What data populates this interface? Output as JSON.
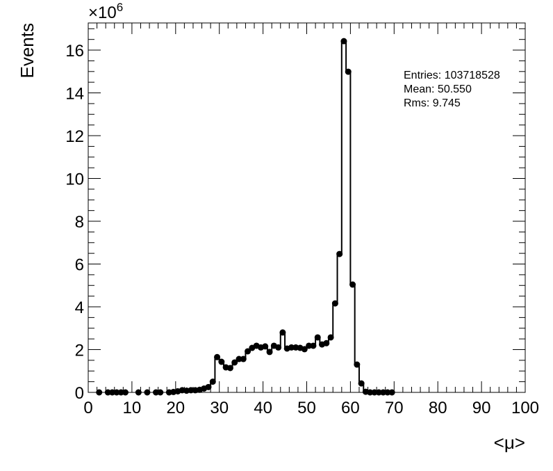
{
  "chart_data": {
    "type": "histogram",
    "y_label": "Events",
    "x_label": "<μ>",
    "y_multiplier_base": "×10",
    "y_multiplier_exponent": "6",
    "stats": [
      "Entries: 103718528",
      "Mean: 50.550",
      "Rms: 9.745"
    ],
    "color": "#000000",
    "bins": [
      0,
      1,
      2,
      3,
      4,
      5,
      6,
      7,
      8,
      9,
      10,
      11,
      12,
      13,
      14,
      15,
      16,
      17,
      18,
      19,
      20,
      21,
      22,
      23,
      24,
      25,
      26,
      27,
      28,
      29,
      30,
      31,
      32,
      33,
      34,
      35,
      36,
      37,
      38,
      39,
      40,
      41,
      42,
      43,
      44,
      45,
      46,
      47,
      48,
      49,
      50,
      51,
      52,
      53,
      54,
      55,
      56,
      57,
      58,
      59,
      60,
      61,
      62,
      63,
      64,
      65,
      66,
      67,
      68,
      69,
      70,
      71,
      72,
      73,
      74,
      75,
      76,
      77,
      78,
      79,
      80,
      81,
      82,
      83,
      84,
      85,
      86,
      87,
      88,
      89,
      90,
      91,
      92,
      93,
      94,
      95,
      96,
      97,
      98,
      99,
      100
    ],
    "values": [
      null,
      null,
      0,
      null,
      0,
      0,
      0,
      0,
      0,
      null,
      null,
      0,
      null,
      0,
      null,
      0,
      0,
      null,
      0,
      0.02,
      0.05,
      0.1,
      0.08,
      0.1,
      0.1,
      0.12,
      0.18,
      0.25,
      0.5,
      1.65,
      1.43,
      1.17,
      1.14,
      1.4,
      1.56,
      1.56,
      1.92,
      2.08,
      2.18,
      2.1,
      2.15,
      1.89,
      2.18,
      2.1,
      2.8,
      2.05,
      2.1,
      2.1,
      2.08,
      2.02,
      2.18,
      2.18,
      2.57,
      2.24,
      2.3,
      2.57,
      4.16,
      6.47,
      16.42,
      14.99,
      5.04,
      1.3,
      0.42,
      0.03,
      0,
      0,
      0,
      0,
      0,
      0,
      null,
      null,
      null,
      null,
      null,
      null,
      null,
      null,
      null,
      null,
      null,
      null,
      null,
      null,
      null,
      null,
      null,
      null,
      null,
      null,
      null,
      null,
      null,
      null,
      null,
      null,
      null,
      null,
      null,
      null
    ],
    "xlim": [
      0,
      100
    ],
    "ylim": [
      0,
      17.27
    ],
    "xticks": [
      0,
      10,
      20,
      30,
      40,
      50,
      60,
      70,
      80,
      90,
      100
    ],
    "yticks": [
      0,
      2,
      4,
      6,
      8,
      10,
      12,
      14,
      16
    ],
    "xminorticks": [
      2,
      4,
      6,
      8,
      12,
      14,
      16,
      18,
      22,
      24,
      26,
      28,
      32,
      34,
      36,
      38,
      42,
      44,
      46,
      48,
      52,
      54,
      56,
      58,
      62,
      64,
      66,
      68,
      72,
      74,
      76,
      78,
      82,
      84,
      86,
      88,
      92,
      94,
      96,
      98
    ],
    "yminorticks": [
      0.5,
      1,
      1.5,
      2.5,
      3,
      3.5,
      4.5,
      5,
      5.5,
      6.5,
      7,
      7.5,
      8.5,
      9,
      9.5,
      10.5,
      11,
      11.5,
      12.5,
      13,
      13.5,
      14.5,
      15,
      15.5,
      16.5,
      17
    ]
  }
}
